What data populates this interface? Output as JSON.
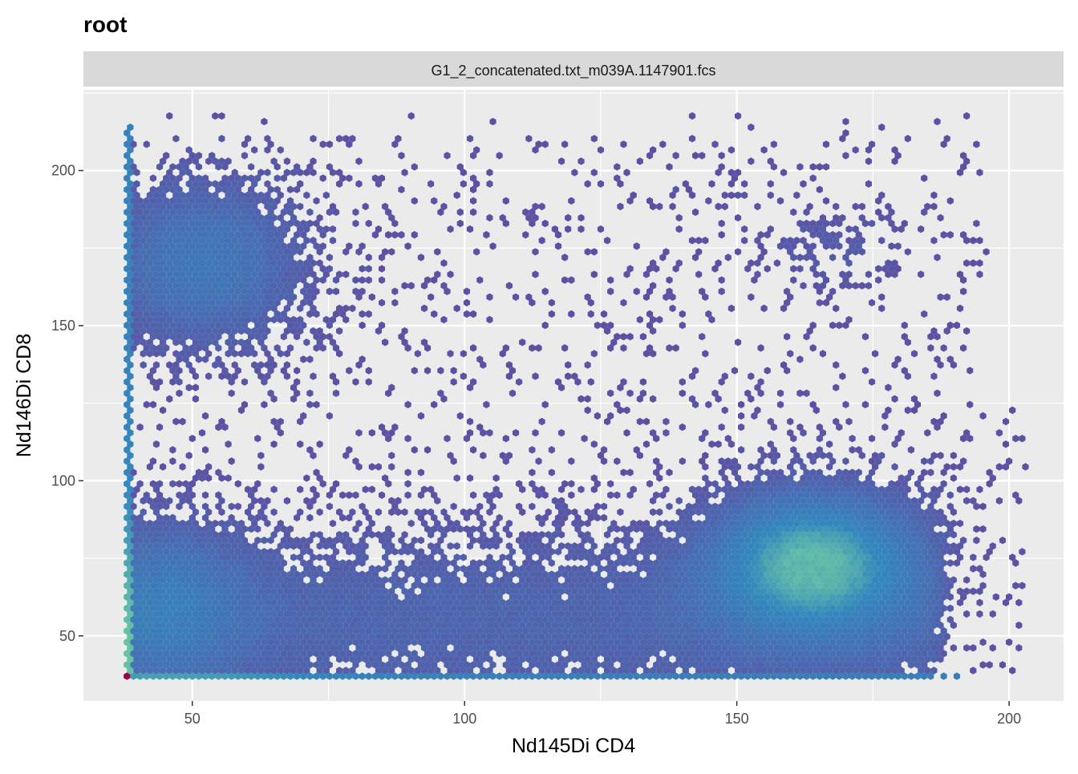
{
  "chart_data": {
    "type": "heatmap",
    "subtype": "hexbin",
    "title": "root",
    "facet_label": "G1_2_concatenated.txt_m039A.1147901.fcs",
    "xlabel": "Nd145Di CD4",
    "ylabel": "Nd146Di CD8",
    "xlim": [
      30,
      210
    ],
    "ylim": [
      29,
      226
    ],
    "x_ticks": [
      50,
      100,
      150,
      200
    ],
    "y_ticks": [
      50,
      100,
      150,
      200
    ],
    "x_tick_labels": [
      "50",
      "100",
      "150",
      "200"
    ],
    "y_tick_labels": [
      "50",
      "100",
      "150",
      "200"
    ],
    "grid": true,
    "legend": "none",
    "density_colors": [
      "#5e4fa2",
      "#3288bd",
      "#66c2a5",
      "#abdda4",
      "#9e0142"
    ],
    "populations": [
      {
        "name": "",
        "x_center": 164,
        "y_center": 74,
        "x_spread": 12,
        "y_spread": 15,
        "weight": 0.9
      },
      {
        "name": "",
        "x_center": 52,
        "y_center": 170,
        "x_spread": 12,
        "y_spread": 18,
        "weight": 0.45
      },
      {
        "name": "",
        "x_center": 168,
        "y_center": 175,
        "x_spread": 8,
        "y_spread": 8,
        "weight": 0.12
      },
      {
        "name": "",
        "x_center": 45,
        "y_center": 60,
        "x_spread": 10,
        "y_spread": 18,
        "weight": 0.35
      }
    ]
  }
}
